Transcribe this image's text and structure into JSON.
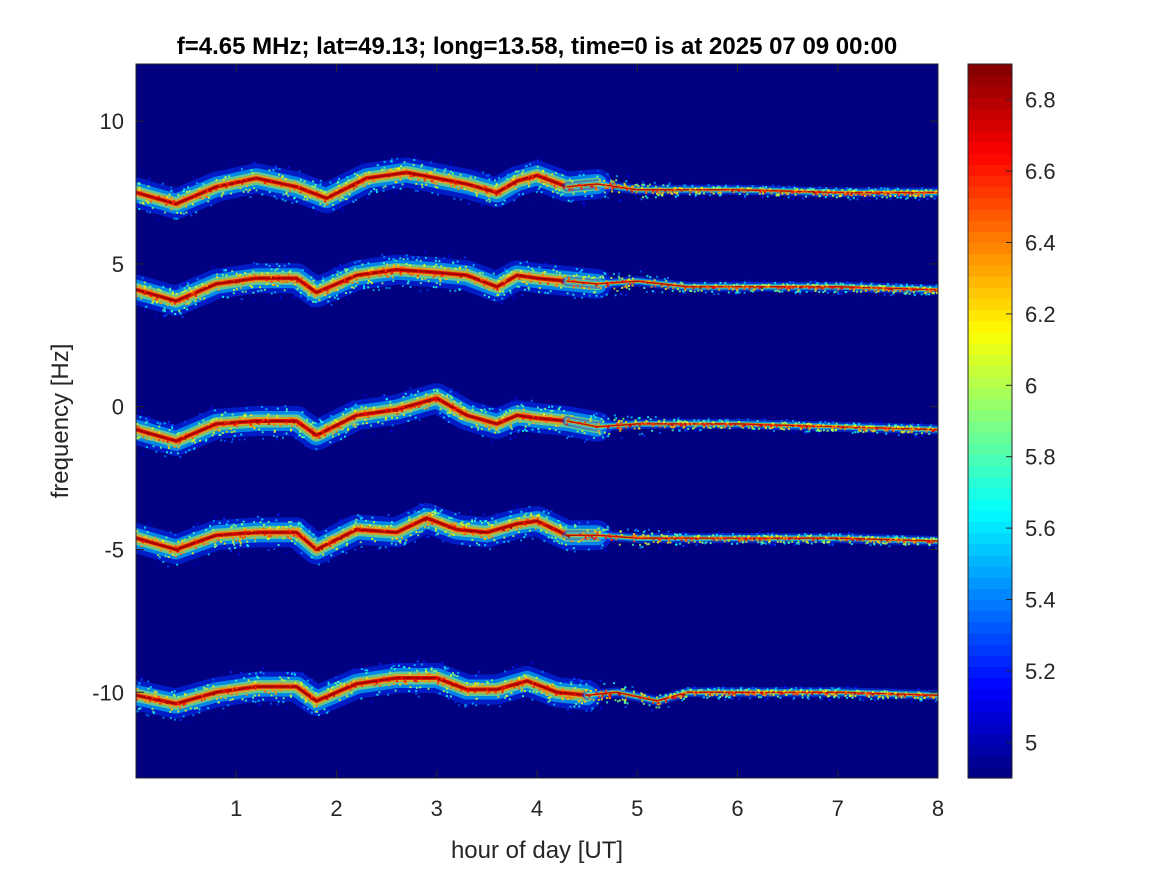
{
  "chart_data": {
    "type": "heatmap",
    "title": "f=4.65 MHz;  lat=49.13; long=13.58, time=0 is at 2025 07 09 00:00",
    "xlabel": "hour of day [UT]",
    "ylabel": "frequency [Hz]",
    "xlim": [
      0,
      8
    ],
    "ylim": [
      -13,
      12
    ],
    "xticks": [
      1,
      2,
      3,
      4,
      5,
      6,
      7,
      8
    ],
    "xtick_labels": [
      "1",
      "2",
      "3",
      "4",
      "5",
      "6",
      "7",
      "8"
    ],
    "yticks": [
      -10,
      -5,
      0,
      5,
      10
    ],
    "ytick_labels": [
      "-10",
      "-5",
      "0",
      "5",
      "10"
    ],
    "colorbar": {
      "colormap": "jet",
      "range": [
        4.9,
        6.9
      ],
      "ticks": [
        5,
        5.2,
        5.4,
        5.6,
        5.8,
        6,
        6.2,
        6.4,
        6.6,
        6.8
      ],
      "tick_labels": [
        "5",
        "5.2",
        "5.4",
        "5.6",
        "5.8",
        "6",
        "6.2",
        "6.4",
        "6.6",
        "6.8"
      ]
    },
    "background_value": 4.9,
    "series": [
      {
        "points": [
          [
            0.0,
            7.5
          ],
          [
            0.4,
            7.1
          ],
          [
            0.8,
            7.7
          ],
          [
            1.2,
            8.0
          ],
          [
            1.6,
            7.7
          ],
          [
            1.9,
            7.3
          ],
          [
            2.3,
            8.0
          ],
          [
            2.7,
            8.2
          ],
          [
            3.0,
            8.0
          ],
          [
            3.3,
            7.8
          ],
          [
            3.6,
            7.5
          ],
          [
            3.8,
            7.9
          ],
          [
            4.0,
            8.1
          ],
          [
            4.3,
            7.7
          ],
          [
            4.6,
            7.8
          ],
          [
            5.0,
            7.6
          ],
          [
            5.5,
            7.6
          ],
          [
            6.0,
            7.6
          ],
          [
            7.0,
            7.5
          ],
          [
            8.0,
            7.5
          ]
        ]
      },
      {
        "points": [
          [
            0.0,
            4.1
          ],
          [
            0.4,
            3.7
          ],
          [
            0.8,
            4.3
          ],
          [
            1.2,
            4.5
          ],
          [
            1.6,
            4.5
          ],
          [
            1.8,
            4.0
          ],
          [
            2.2,
            4.6
          ],
          [
            2.6,
            4.8
          ],
          [
            3.0,
            4.7
          ],
          [
            3.3,
            4.6
          ],
          [
            3.6,
            4.2
          ],
          [
            3.8,
            4.6
          ],
          [
            4.0,
            4.5
          ],
          [
            4.3,
            4.4
          ],
          [
            4.6,
            4.3
          ],
          [
            5.0,
            4.4
          ],
          [
            5.5,
            4.2
          ],
          [
            6.0,
            4.2
          ],
          [
            7.0,
            4.2
          ],
          [
            8.0,
            4.1
          ]
        ]
      },
      {
        "points": [
          [
            0.0,
            -0.8
          ],
          [
            0.4,
            -1.2
          ],
          [
            0.8,
            -0.6
          ],
          [
            1.2,
            -0.5
          ],
          [
            1.6,
            -0.5
          ],
          [
            1.8,
            -1.0
          ],
          [
            2.2,
            -0.3
          ],
          [
            2.6,
            -0.1
          ],
          [
            3.0,
            0.3
          ],
          [
            3.3,
            -0.3
          ],
          [
            3.6,
            -0.6
          ],
          [
            3.8,
            -0.3
          ],
          [
            4.0,
            -0.4
          ],
          [
            4.3,
            -0.5
          ],
          [
            4.6,
            -0.7
          ],
          [
            5.0,
            -0.6
          ],
          [
            5.5,
            -0.6
          ],
          [
            6.0,
            -0.6
          ],
          [
            7.0,
            -0.7
          ],
          [
            8.0,
            -0.8
          ]
        ]
      },
      {
        "points": [
          [
            0.0,
            -4.6
          ],
          [
            0.4,
            -5.0
          ],
          [
            0.8,
            -4.5
          ],
          [
            1.2,
            -4.4
          ],
          [
            1.6,
            -4.4
          ],
          [
            1.8,
            -5.0
          ],
          [
            2.2,
            -4.3
          ],
          [
            2.6,
            -4.4
          ],
          [
            2.9,
            -3.9
          ],
          [
            3.2,
            -4.3
          ],
          [
            3.5,
            -4.4
          ],
          [
            3.8,
            -4.1
          ],
          [
            4.0,
            -4.0
          ],
          [
            4.3,
            -4.5
          ],
          [
            4.6,
            -4.5
          ],
          [
            5.0,
            -4.6
          ],
          [
            5.5,
            -4.6
          ],
          [
            6.0,
            -4.6
          ],
          [
            7.0,
            -4.6
          ],
          [
            8.0,
            -4.7
          ]
        ]
      },
      {
        "points": [
          [
            0.0,
            -10.1
          ],
          [
            0.4,
            -10.4
          ],
          [
            0.8,
            -10.0
          ],
          [
            1.2,
            -9.8
          ],
          [
            1.6,
            -9.8
          ],
          [
            1.8,
            -10.3
          ],
          [
            2.2,
            -9.7
          ],
          [
            2.6,
            -9.5
          ],
          [
            3.0,
            -9.5
          ],
          [
            3.3,
            -9.9
          ],
          [
            3.6,
            -9.9
          ],
          [
            3.9,
            -9.6
          ],
          [
            4.2,
            -10.0
          ],
          [
            4.5,
            -10.1
          ],
          [
            4.8,
            -10.0
          ],
          [
            5.2,
            -10.3
          ],
          [
            5.5,
            -10.0
          ],
          [
            6.0,
            -10.0
          ],
          [
            7.0,
            -10.0
          ],
          [
            8.0,
            -10.1
          ]
        ]
      }
    ]
  }
}
